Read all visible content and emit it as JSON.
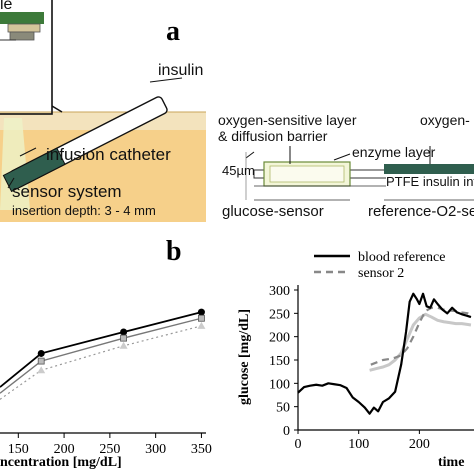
{
  "panel_a": {
    "letter": "a",
    "left": {
      "top_label": "le",
      "insulin": "insulin",
      "infusion_catheter": "infusion catheter",
      "sensor_system": "sensor system",
      "insertion_depth": "insertion depth: 3 - 4 mm"
    },
    "right": {
      "oxygen_layer_1": "oxygen-sensitive layer",
      "diffusion_barrier": "& diffusion barrier",
      "oxygen_layer_2": "oxygen-",
      "enzyme_layer": "enzyme layer",
      "thickness": "45µm",
      "ptfe": "PTFE insulin infus",
      "glucose_sensor": "glucose-sensor",
      "reference_sensor": "reference-O2-se"
    }
  },
  "panel_b": {
    "letter": "b"
  },
  "chart_data": [
    {
      "type": "line",
      "title": "",
      "xlabel": "ncentration [mg/dL]",
      "ylabel": "",
      "x_ticks": [
        150,
        200,
        250,
        300,
        350
      ],
      "xlim": [
        130,
        355
      ],
      "series": [
        {
          "x": [
            130,
            175,
            265,
            350
          ],
          "values": [
            0.3,
            0.52,
            0.66,
            0.79
          ]
        },
        {
          "x": [
            130,
            175,
            265,
            350
          ],
          "values": [
            0.26,
            0.47,
            0.62,
            0.75
          ]
        },
        {
          "x": [
            130,
            175,
            265,
            350
          ],
          "values": [
            0.22,
            0.41,
            0.57,
            0.7
          ]
        }
      ]
    },
    {
      "type": "line",
      "title": "",
      "xlabel": "time",
      "ylabel": "glucose [mg/dL]",
      "y_ticks": [
        0,
        50,
        100,
        150,
        200,
        250,
        300
      ],
      "x_ticks": [
        0,
        100,
        200
      ],
      "ylim": [
        0,
        300
      ],
      "xlim": [
        0,
        290
      ],
      "legend": "top",
      "series": [
        {
          "name": "blood reference",
          "x": [
            0,
            10,
            20,
            30,
            40,
            50,
            60,
            70,
            80,
            90,
            100,
            110,
            118,
            125,
            132,
            140,
            150,
            160,
            170,
            178,
            184,
            190,
            196,
            200,
            206,
            212,
            218,
            224,
            230,
            238,
            246,
            254,
            262,
            270,
            278,
            285
          ],
          "values": [
            80,
            92,
            95,
            97,
            95,
            100,
            98,
            96,
            90,
            70,
            60,
            48,
            35,
            48,
            40,
            60,
            68,
            82,
            140,
            210,
            275,
            292,
            280,
            270,
            292,
            265,
            262,
            280,
            270,
            258,
            250,
            262,
            252,
            248,
            245,
            242
          ]
        },
        {
          "name": "sensor 2",
          "x": [
            120,
            130,
            140,
            150,
            160,
            170,
            180,
            190,
            200,
            210,
            220,
            230,
            240,
            250,
            260,
            270,
            280,
            285
          ],
          "values": [
            140,
            145,
            150,
            152,
            155,
            160,
            175,
            200,
            230,
            255,
            262,
            262,
            258,
            256,
            255,
            252,
            250,
            248
          ]
        },
        {
          "x": [
            118,
            130,
            140,
            150,
            160,
            170,
            180,
            190,
            200,
            210,
            220,
            230,
            240,
            250,
            260,
            270,
            280,
            285
          ],
          "values": [
            128,
            132,
            135,
            140,
            150,
            165,
            195,
            225,
            240,
            248,
            242,
            235,
            232,
            230,
            228,
            228,
            226,
            225
          ]
        }
      ]
    }
  ]
}
